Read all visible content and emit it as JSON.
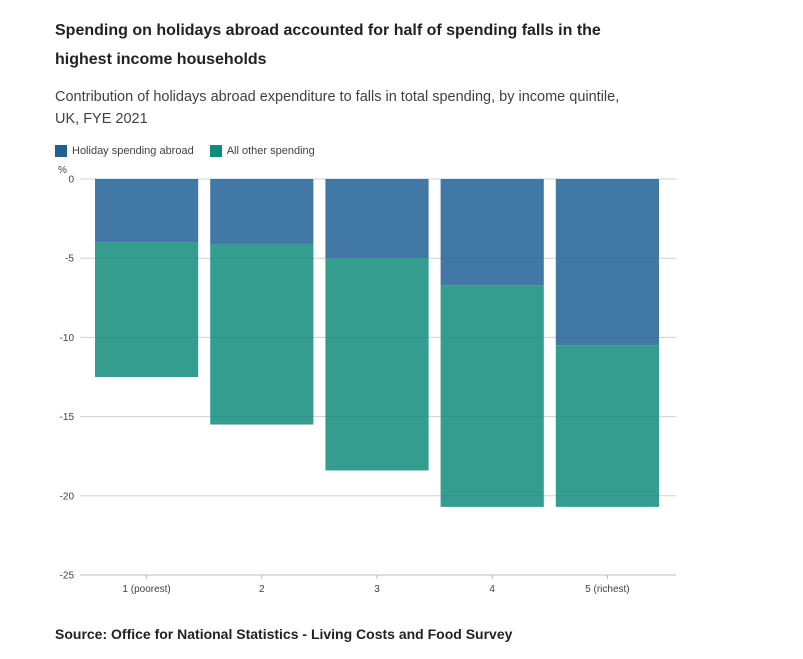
{
  "chart_data": {
    "type": "bar",
    "stacked": true,
    "title": "Spending on holidays abroad accounted for half of spending falls in the highest income households",
    "subtitle": "Contribution of holidays abroad expenditure to falls in total spending, by income quintile, UK, FYE 2021",
    "ylabel": "%",
    "xlabel": "",
    "ylim": [
      -25,
      0
    ],
    "yticks": [
      0,
      -5,
      -10,
      -15,
      -20,
      -25
    ],
    "grid": true,
    "legend_position": "top-left",
    "categories": [
      "1 (poorest)",
      "2",
      "3",
      "4",
      "5 (richest)"
    ],
    "series": [
      {
        "name": "Holiday spending abroad",
        "color": "#206095",
        "values": [
          -4.0,
          -4.1,
          -5.0,
          -6.7,
          -10.5
        ]
      },
      {
        "name": "All other spending",
        "color": "#118c7b",
        "values": [
          -8.5,
          -11.4,
          -13.4,
          -14.0,
          -10.2
        ]
      }
    ]
  },
  "source": "Source: Office for National Statistics - Living Costs and Food Survey"
}
